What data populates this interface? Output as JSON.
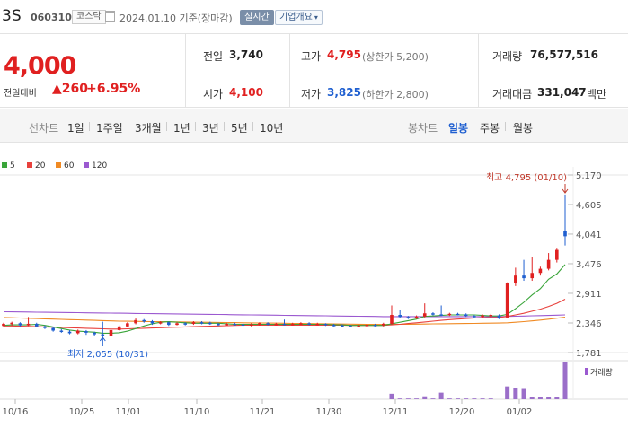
{
  "header": {
    "title": "3S",
    "code": "060310",
    "market": "코스닥",
    "date": "2024.01.10",
    "date_note": "기준(장마감)",
    "realtime_label": "실시간",
    "company_label": "기업개요"
  },
  "quote": {
    "price": "4,000",
    "change_label": "전일대비",
    "change_value": "260",
    "change_pct": "+6.95%",
    "prev_close_label": "전일",
    "prev_close": "3,740",
    "open_label": "시가",
    "open": "4,100",
    "high_label": "고가",
    "high": "4,795",
    "upper_limit": "(상한가 5,200)",
    "low_label": "저가",
    "low": "3,825",
    "lower_limit": "(하한가 2,800)",
    "volume_label": "거래량",
    "volume": "76,577,516",
    "amount_label": "거래대금",
    "amount": "331,047",
    "amount_unit": "백만"
  },
  "line_tabs": {
    "label": "선차트",
    "items": [
      "1일",
      "1주일",
      "3개월",
      "1년",
      "3년",
      "5년",
      "10년"
    ]
  },
  "candle_tabs": {
    "label": "봉차트",
    "items": [
      "일봉",
      "주봉",
      "월봉"
    ],
    "active": "일봉"
  },
  "legend": [
    {
      "label": "5",
      "color": "#3aa53a"
    },
    {
      "label": "20",
      "color": "#e8413c"
    },
    {
      "label": "60",
      "color": "#f08a24"
    },
    {
      "label": "120",
      "color": "#9b59d0"
    }
  ],
  "chart_data": {
    "type": "candlestick",
    "y_ticks": [
      "5,170",
      "4,605",
      "4,041",
      "3,476",
      "2,911",
      "2,346",
      "1,781"
    ],
    "ylim": [
      1781,
      5170
    ],
    "x_ticks": [
      "10/16",
      "10/25",
      "11/01",
      "11/10",
      "11/21",
      "11/30",
      "12/11",
      "12/20",
      "01/02"
    ],
    "high_annotation": "최고 4,795 (01/10)",
    "low_annotation": "최저 2,055 (10/31)",
    "volume_legend": "거래량",
    "candles": [
      [
        2290,
        2330,
        2270,
        2350
      ],
      [
        2330,
        2350,
        2290,
        2370
      ],
      [
        2340,
        2300,
        2280,
        2360
      ],
      [
        2300,
        2330,
        2290,
        2460
      ],
      [
        2330,
        2280,
        2260,
        2350
      ],
      [
        2280,
        2250,
        2230,
        2300
      ],
      [
        2250,
        2200,
        2180,
        2270
      ],
      [
        2200,
        2180,
        2160,
        2230
      ],
      [
        2180,
        2150,
        2130,
        2210
      ],
      [
        2150,
        2200,
        2130,
        2220
      ],
      [
        2190,
        2160,
        2120,
        2210
      ],
      [
        2160,
        2130,
        2100,
        2180
      ],
      [
        2130,
        2100,
        2055,
        2370
      ],
      [
        2100,
        2210,
        2090,
        2230
      ],
      [
        2210,
        2280,
        2190,
        2300
      ],
      [
        2280,
        2340,
        2260,
        2360
      ],
      [
        2340,
        2400,
        2320,
        2430
      ],
      [
        2400,
        2380,
        2350,
        2420
      ],
      [
        2380,
        2340,
        2310,
        2400
      ],
      [
        2340,
        2360,
        2320,
        2380
      ],
      [
        2360,
        2310,
        2290,
        2370
      ],
      [
        2310,
        2340,
        2300,
        2360
      ],
      [
        2340,
        2330,
        2300,
        2360
      ],
      [
        2330,
        2360,
        2310,
        2380
      ],
      [
        2360,
        2350,
        2320,
        2380
      ],
      [
        2350,
        2330,
        2310,
        2370
      ],
      [
        2330,
        2310,
        2290,
        2350
      ],
      [
        2310,
        2330,
        2300,
        2350
      ],
      [
        2330,
        2320,
        2300,
        2350
      ],
      [
        2320,
        2300,
        2280,
        2340
      ],
      [
        2300,
        2320,
        2280,
        2340
      ],
      [
        2320,
        2340,
        2300,
        2360
      ],
      [
        2340,
        2320,
        2300,
        2360
      ],
      [
        2320,
        2330,
        2300,
        2350
      ],
      [
        2330,
        2320,
        2300,
        2410
      ],
      [
        2320,
        2330,
        2300,
        2350
      ],
      [
        2330,
        2340,
        2310,
        2360
      ],
      [
        2340,
        2320,
        2300,
        2360
      ],
      [
        2320,
        2330,
        2300,
        2350
      ],
      [
        2330,
        2310,
        2290,
        2340
      ],
      [
        2310,
        2300,
        2280,
        2330
      ],
      [
        2300,
        2290,
        2260,
        2320
      ],
      [
        2290,
        2280,
        2260,
        2310
      ],
      [
        2280,
        2290,
        2260,
        2310
      ],
      [
        2290,
        2310,
        2270,
        2330
      ],
      [
        2310,
        2300,
        2280,
        2330
      ],
      [
        2300,
        2330,
        2280,
        2350
      ],
      [
        2330,
        2500,
        2310,
        2680
      ],
      [
        2500,
        2460,
        2440,
        2600
      ],
      [
        2460,
        2440,
        2420,
        2480
      ],
      [
        2440,
        2470,
        2420,
        2490
      ],
      [
        2470,
        2530,
        2450,
        2720
      ],
      [
        2530,
        2510,
        2490,
        2550
      ],
      [
        2510,
        2500,
        2480,
        2680
      ],
      [
        2500,
        2520,
        2480,
        2540
      ],
      [
        2520,
        2510,
        2490,
        2540
      ],
      [
        2510,
        2480,
        2460,
        2530
      ],
      [
        2480,
        2460,
        2440,
        2500
      ],
      [
        2460,
        2490,
        2440,
        2510
      ],
      [
        2490,
        2500,
        2450,
        2520
      ],
      [
        2490,
        2430,
        2420,
        2510
      ],
      [
        2450,
        3100,
        2450,
        3120
      ],
      [
        3100,
        3250,
        3050,
        3400
      ],
      [
        3250,
        3200,
        3150,
        3550
      ],
      [
        3200,
        3300,
        3150,
        3600
      ],
      [
        3300,
        3380,
        3250,
        3420
      ],
      [
        3380,
        3550,
        3350,
        3680
      ],
      [
        3550,
        3740,
        3500,
        3780
      ],
      [
        4100,
        4000,
        3825,
        4795
      ]
    ],
    "volumes": [
      0,
      0,
      0,
      0,
      0,
      0,
      0,
      0,
      0,
      0,
      0,
      0,
      0,
      0,
      0,
      0,
      0,
      0,
      0,
      0,
      0,
      0,
      0,
      0,
      0,
      0,
      0,
      0,
      0,
      0,
      0,
      0,
      0,
      0,
      0,
      0,
      0,
      0,
      0,
      0,
      0,
      0,
      0,
      0,
      0,
      0,
      0,
      0.15,
      0.02,
      0.02,
      0.02,
      0.08,
      0.02,
      0.18,
      0.02,
      0.02,
      0.02,
      0.02,
      0.02,
      0.02,
      0,
      0.35,
      0.3,
      0.28,
      0.05,
      0.05,
      0.05,
      0.06,
      1.0
    ],
    "ma5": [
      2300,
      2310,
      2310,
      2310,
      2320,
      2300,
      2270,
      2240,
      2210,
      2190,
      2180,
      2170,
      2150,
      2150,
      2160,
      2190,
      2240,
      2290,
      2330,
      2360,
      2370,
      2360,
      2350,
      2340,
      2340,
      2340,
      2340,
      2330,
      2320,
      2320,
      2320,
      2320,
      2320,
      2320,
      2320,
      2320,
      2320,
      2320,
      2320,
      2320,
      2310,
      2310,
      2300,
      2300,
      2300,
      2300,
      2300,
      2330,
      2360,
      2390,
      2420,
      2470,
      2480,
      2490,
      2500,
      2500,
      2500,
      2500,
      2490,
      2480,
      2480,
      2510,
      2620,
      2740,
      2880,
      3000,
      3180,
      3280,
      3460
    ],
    "ma20": [
      2290,
      2290,
      2285,
      2280,
      2275,
      2270,
      2265,
      2260,
      2255,
      2250,
      2245,
      2240,
      2235,
      2230,
      2230,
      2235,
      2240,
      2245,
      2250,
      2255,
      2260,
      2265,
      2270,
      2275,
      2280,
      2285,
      2290,
      2295,
      2300,
      2305,
      2305,
      2305,
      2305,
      2305,
      2305,
      2305,
      2305,
      2305,
      2305,
      2305,
      2305,
      2305,
      2300,
      2300,
      2300,
      2300,
      2300,
      2310,
      2320,
      2335,
      2350,
      2365,
      2380,
      2395,
      2410,
      2420,
      2430,
      2440,
      2445,
      2450,
      2450,
      2470,
      2500,
      2530,
      2570,
      2610,
      2660,
      2720,
      2800
    ],
    "ma60": [
      2450,
      2445,
      2440,
      2435,
      2430,
      2425,
      2420,
      2415,
      2410,
      2405,
      2400,
      2395,
      2390,
      2385,
      2380,
      2378,
      2376,
      2374,
      2372,
      2370,
      2368,
      2366,
      2364,
      2362,
      2360,
      2358,
      2356,
      2354,
      2352,
      2350,
      2348,
      2346,
      2344,
      2342,
      2340,
      2338,
      2336,
      2334,
      2332,
      2330,
      2328,
      2326,
      2324,
      2322,
      2320,
      2318,
      2316,
      2318,
      2320,
      2322,
      2324,
      2326,
      2328,
      2330,
      2332,
      2334,
      2336,
      2338,
      2340,
      2342,
      2344,
      2350,
      2360,
      2372,
      2385,
      2400,
      2418,
      2436,
      2455
    ],
    "ma120": [
      2560,
      2558,
      2556,
      2554,
      2552,
      2550,
      2548,
      2546,
      2544,
      2542,
      2540,
      2538,
      2536,
      2534,
      2532,
      2530,
      2528,
      2526,
      2524,
      2522,
      2520,
      2518,
      2516,
      2514,
      2512,
      2510,
      2508,
      2506,
      2504,
      2502,
      2500,
      2498,
      2496,
      2494,
      2492,
      2490,
      2488,
      2486,
      2484,
      2482,
      2480,
      2478,
      2476,
      2474,
      2472,
      2470,
      2468,
      2468,
      2468,
      2468,
      2468,
      2468,
      2468,
      2468,
      2468,
      2468,
      2468,
      2468,
      2468,
      2468,
      2468,
      2470,
      2474,
      2478,
      2482,
      2486,
      2490,
      2494,
      2500
    ]
  }
}
